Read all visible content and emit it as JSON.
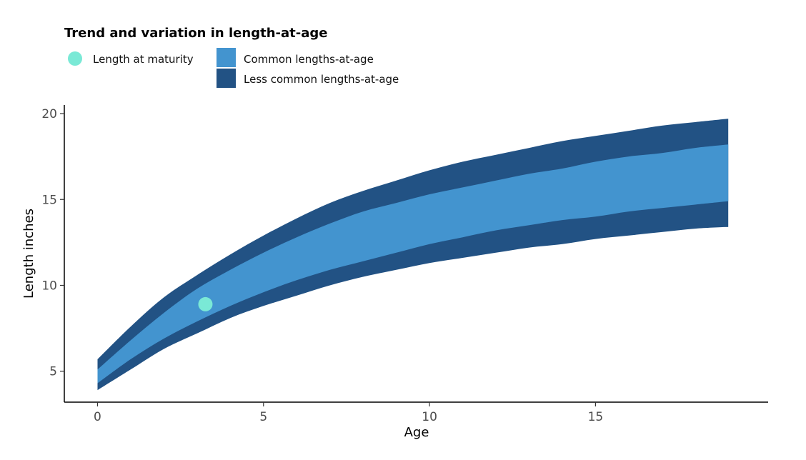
{
  "chart_data": {
    "type": "area",
    "title": "",
    "xlabel": "Age",
    "ylabel": "Length inches",
    "xlim": [
      -1,
      20.2
    ],
    "ylim": [
      3.2,
      20.5
    ],
    "x_ticks": [
      0,
      5,
      10,
      15
    ],
    "y_ticks": [
      5,
      10,
      15,
      20
    ],
    "grid": false,
    "legend": {
      "title": "Trend and variation in length-at-age",
      "placement": "top-left",
      "entries": [
        {
          "key": "maturity",
          "label": "Length at maturity",
          "color": "#7ae9d6",
          "shape": "circle"
        },
        {
          "key": "common",
          "label": "Common lengths-at-age",
          "color": "#4394cf",
          "shape": "square"
        },
        {
          "key": "less_common",
          "label": "Less common lengths-at-age",
          "color": "#225284",
          "shape": "square"
        }
      ]
    },
    "bands": {
      "x": [
        0,
        1,
        2,
        3,
        4,
        5,
        6,
        7,
        8,
        9,
        10,
        11,
        12,
        13,
        14,
        15,
        16,
        17,
        18,
        19
      ],
      "outer_upper": [
        5.7,
        7.6,
        9.3,
        10.6,
        11.8,
        12.9,
        13.9,
        14.8,
        15.5,
        16.1,
        16.7,
        17.2,
        17.6,
        18.0,
        18.4,
        18.7,
        19.0,
        19.3,
        19.5,
        19.7
      ],
      "inner_upper": [
        5.1,
        6.8,
        8.4,
        9.8,
        10.9,
        11.9,
        12.8,
        13.6,
        14.3,
        14.8,
        15.3,
        15.7,
        16.1,
        16.5,
        16.8,
        17.2,
        17.5,
        17.7,
        18.0,
        18.2
      ],
      "inner_lower": [
        4.3,
        5.7,
        6.9,
        7.9,
        8.8,
        9.6,
        10.3,
        10.9,
        11.4,
        11.9,
        12.4,
        12.8,
        13.2,
        13.5,
        13.8,
        14.0,
        14.3,
        14.5,
        14.7,
        14.9
      ],
      "outer_lower": [
        3.9,
        5.1,
        6.3,
        7.2,
        8.1,
        8.8,
        9.4,
        10.0,
        10.5,
        10.9,
        11.3,
        11.6,
        11.9,
        12.2,
        12.4,
        12.7,
        12.9,
        13.1,
        13.3,
        13.4
      ]
    },
    "maturity_point": {
      "x": 3.25,
      "y": 8.9
    }
  }
}
